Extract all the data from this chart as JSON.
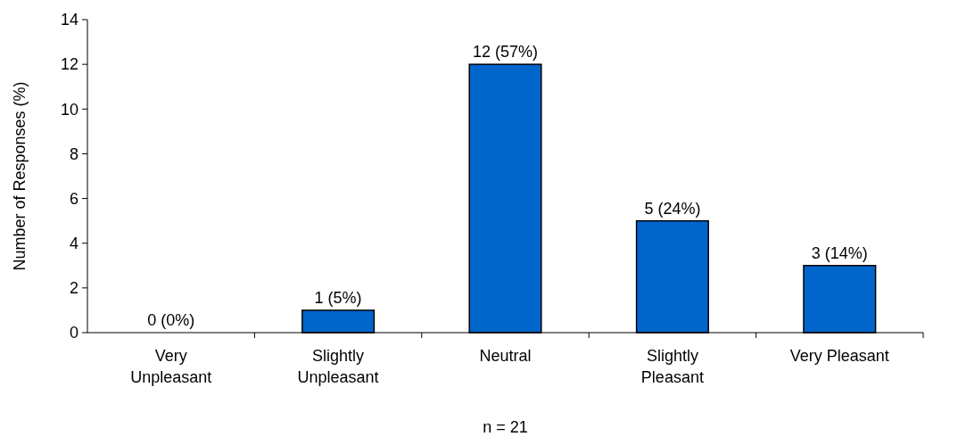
{
  "chart_data": {
    "type": "bar",
    "xlabel": "n = 21",
    "ylabel": "Number of Responses (%)",
    "categories": [
      "Very Unpleasant",
      "Slightly Unpleasant",
      "Neutral",
      "Slightly Pleasant",
      "Very Pleasant"
    ],
    "values": [
      0,
      1,
      12,
      5,
      3
    ],
    "value_labels": [
      "0 (0%)",
      "1 (5%)",
      "12 (57%)",
      "5 (24%)",
      "3 (14%)"
    ],
    "color": "#0066cc",
    "ylim": [
      0,
      14
    ],
    "yticks": [
      0,
      2,
      4,
      6,
      8,
      10,
      12,
      14
    ],
    "grid": false
  }
}
